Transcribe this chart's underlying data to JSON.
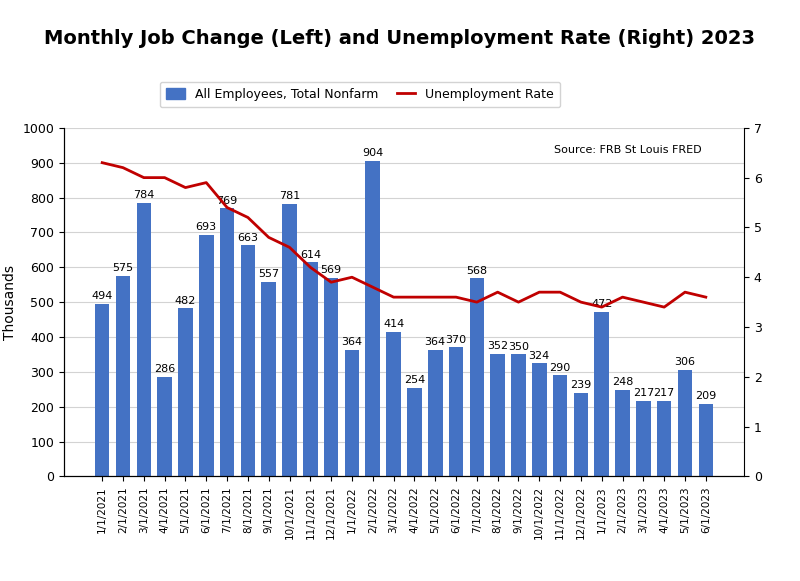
{
  "title": "Monthly Job Change (Left) and Unemployment Rate (Right) 2023",
  "categories": [
    "1/1/2021",
    "2/1/2021",
    "3/1/2021",
    "4/1/2021",
    "5/1/2021",
    "6/1/2021",
    "7/1/2021",
    "8/1/2021",
    "9/1/2021",
    "10/1/2021",
    "11/1/2021",
    "12/1/2021",
    "1/1/2022",
    "2/1/2022",
    "3/1/2022",
    "4/1/2022",
    "5/1/2022",
    "6/1/2022",
    "7/1/2022",
    "8/1/2022",
    "9/1/2022",
    "10/1/2022",
    "11/1/2022",
    "12/1/2022",
    "1/1/2023",
    "2/1/2023",
    "3/1/2023",
    "4/1/2023",
    "5/1/2023",
    "6/1/2023"
  ],
  "bar_values": [
    494,
    575,
    784,
    286,
    482,
    693,
    769,
    663,
    557,
    781,
    614,
    569,
    364,
    904,
    414,
    254,
    364,
    370,
    568,
    352,
    350,
    324,
    290,
    239,
    472,
    248,
    217,
    217,
    306,
    209
  ],
  "unemployment_rate": [
    6.3,
    6.2,
    6.0,
    6.0,
    5.8,
    5.9,
    5.4,
    5.2,
    4.8,
    4.6,
    4.2,
    3.9,
    4.0,
    3.8,
    3.6,
    3.6,
    3.6,
    3.6,
    3.5,
    3.7,
    3.5,
    3.7,
    3.7,
    3.5,
    3.4,
    3.6,
    3.5,
    3.4,
    3.7,
    3.6
  ],
  "bar_color": "#4472C4",
  "line_color": "#C00000",
  "ylabel_left": "Thousands",
  "ylim_left": [
    0,
    1000
  ],
  "ylim_right": [
    0,
    7
  ],
  "yticks_left": [
    0,
    100,
    200,
    300,
    400,
    500,
    600,
    700,
    800,
    900,
    1000
  ],
  "yticks_right": [
    0,
    1,
    2,
    3,
    4,
    5,
    6,
    7
  ],
  "legend_bar": "All Employees, Total Nonfarm",
  "legend_line": "Unemployment Rate",
  "source_text": "Source: FRB St Louis FRED",
  "title_fontsize": 14,
  "label_fontsize": 8,
  "tick_fontsize": 7.5
}
